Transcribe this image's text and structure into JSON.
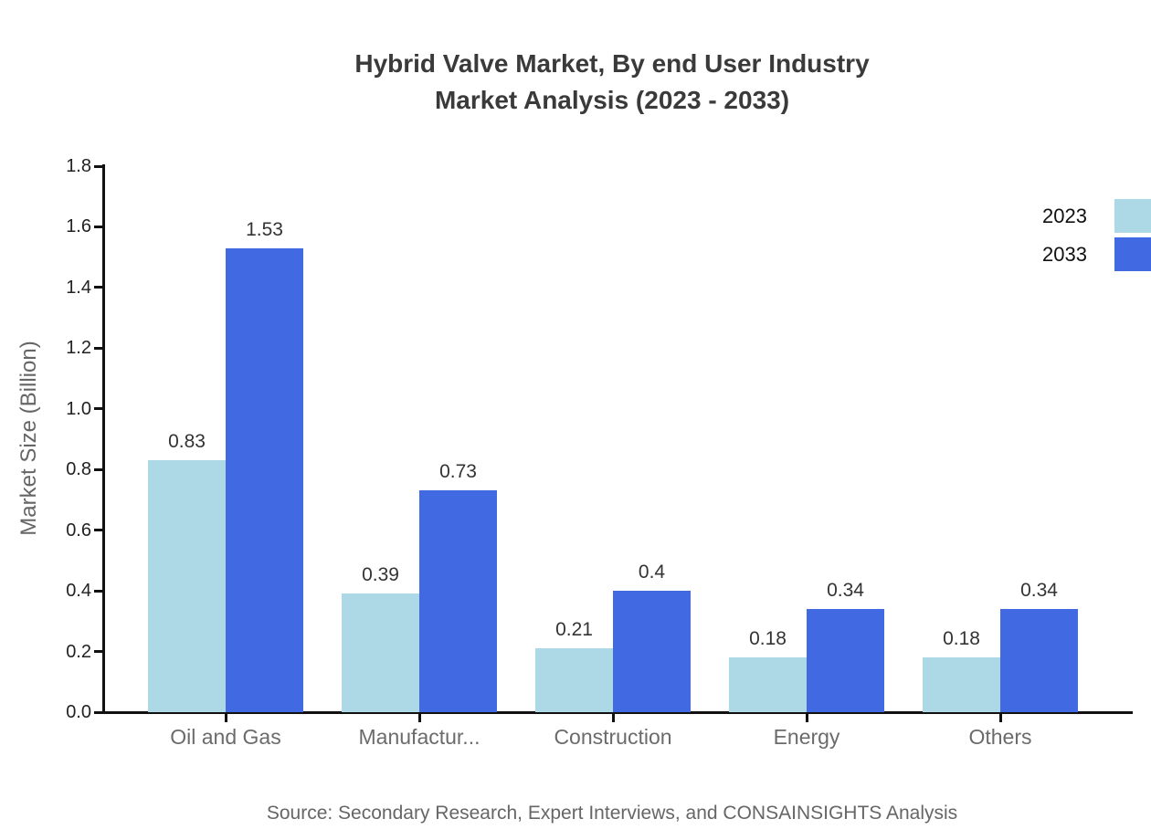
{
  "chart_data": {
    "type": "bar",
    "title": "Hybrid Valve Market, By end User Industry Market Analysis (2023 - 2033)",
    "title_line1": "Hybrid Valve Market, By end User Industry",
    "title_line2": "Market Analysis (2023 - 2033)",
    "categories": [
      "Oil and Gas",
      "Manufactur...",
      "Construction",
      "Energy",
      "Others"
    ],
    "series": [
      {
        "name": "2023",
        "color": "#ADD8E6",
        "values": [
          0.83,
          0.39,
          0.21,
          0.18,
          0.18
        ],
        "labels": [
          "0.83",
          "0.39",
          "0.21",
          "0.18",
          "0.18"
        ]
      },
      {
        "name": "2033",
        "color": "#4169E1",
        "values": [
          1.53,
          0.73,
          0.4,
          0.34,
          0.34
        ],
        "labels": [
          "1.53",
          "0.73",
          "0.4",
          "0.34",
          "0.34"
        ]
      }
    ],
    "xlabel": "",
    "ylabel": "Market Size (Billion)",
    "ylim": [
      0,
      1.8
    ],
    "ytick_step": 0.2,
    "ytick_labels": [
      "0.0",
      "0.2",
      "0.4",
      "0.6",
      "0.8",
      "1.0",
      "1.2",
      "1.4",
      "1.6",
      "1.8"
    ],
    "legend_position": "top-right",
    "grid": false,
    "source": "Source: Secondary Research, Expert Interviews, and CONSAINSIGHTS Analysis",
    "colors": {
      "axis": "#111111",
      "title_text": "#3A3A3A",
      "ytick_text": "#222222",
      "xtick_text": "#6B6B6B",
      "data_label_text": "#333333",
      "source_text": "#666666"
    }
  }
}
